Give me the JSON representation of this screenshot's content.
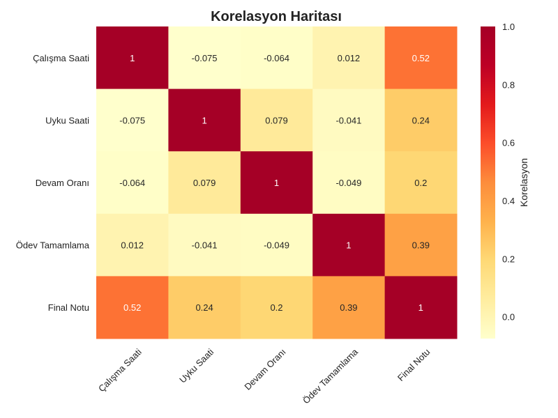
{
  "chart_data": {
    "type": "heatmap",
    "title": "Korelasyon Haritası",
    "rows": [
      "Çalışma Saati",
      "Uyku Saati",
      "Devam Oranı",
      "Ödev Tamamlama",
      "Final Notu"
    ],
    "columns": [
      "Çalışma Saati",
      "Uyku Saati",
      "Devam Oranı",
      "Ödev Tamamlama",
      "Final Notu"
    ],
    "values": [
      [
        1,
        -0.075,
        -0.064,
        0.012,
        0.52
      ],
      [
        -0.075,
        1,
        0.079,
        -0.041,
        0.24
      ],
      [
        -0.064,
        0.079,
        1,
        -0.049,
        0.2
      ],
      [
        0.012,
        -0.041,
        -0.049,
        1,
        0.39
      ],
      [
        0.52,
        0.24,
        0.2,
        0.39,
        1
      ]
    ],
    "colorbar": {
      "label": "Korelasyon",
      "range": [
        -0.075,
        1.0
      ],
      "ticks": [
        "0.0",
        "0.2",
        "0.4",
        "0.6",
        "0.8",
        "1.0"
      ],
      "colormap": "YlOrRd"
    }
  }
}
